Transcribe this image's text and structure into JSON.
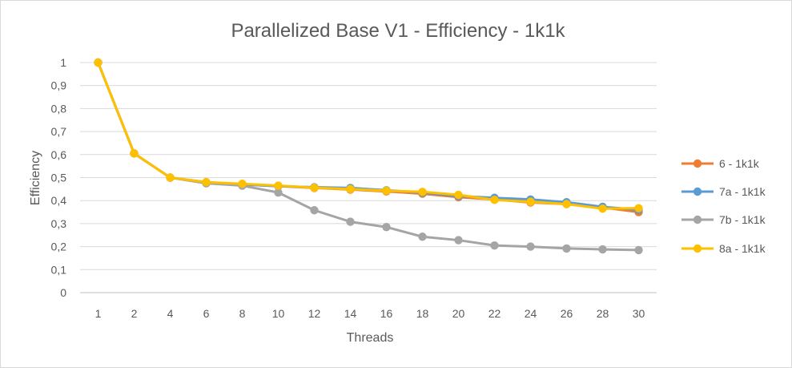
{
  "chart_data": {
    "type": "line",
    "title": "Parallelized Base V1 - Efficiency - 1k1k",
    "xlabel": "Threads",
    "ylabel": "Efficiency",
    "categories": [
      "1",
      "2",
      "4",
      "6",
      "8",
      "10",
      "12",
      "14",
      "16",
      "18",
      "20",
      "22",
      "24",
      "26",
      "28",
      "30"
    ],
    "ylim": [
      0,
      1
    ],
    "yticks": [
      "0",
      "0,1",
      "0,2",
      "0,3",
      "0,4",
      "0,5",
      "0,6",
      "0,7",
      "0,8",
      "0,9",
      "1"
    ],
    "grid": true,
    "legend_position": "right",
    "series": [
      {
        "name": "6 - 1k1k",
        "color": "#ED7D31",
        "values": [
          1,
          0.605,
          0.5,
          0.478,
          0.47,
          0.463,
          0.455,
          0.448,
          0.44,
          0.43,
          0.415,
          0.405,
          0.392,
          0.385,
          0.37,
          0.35
        ]
      },
      {
        "name": "7a - 1k1k",
        "color": "#5B9BD5",
        "values": [
          1,
          0.605,
          0.5,
          0.48,
          0.47,
          0.463,
          0.458,
          0.455,
          0.445,
          0.435,
          0.42,
          0.412,
          0.405,
          0.393,
          0.373,
          0.36
        ]
      },
      {
        "name": "7b - 1k1k",
        "color": "#A5A5A5",
        "values": [
          1,
          0.605,
          0.5,
          0.475,
          0.465,
          0.435,
          0.358,
          0.308,
          0.285,
          0.243,
          0.228,
          0.205,
          0.2,
          0.192,
          0.188,
          0.185
        ]
      },
      {
        "name": "8a - 1k1k",
        "color": "#FFC000",
        "values": [
          1,
          0.605,
          0.5,
          0.48,
          0.473,
          0.465,
          0.456,
          0.45,
          0.443,
          0.438,
          0.425,
          0.403,
          0.395,
          0.385,
          0.365,
          0.367
        ]
      }
    ]
  }
}
